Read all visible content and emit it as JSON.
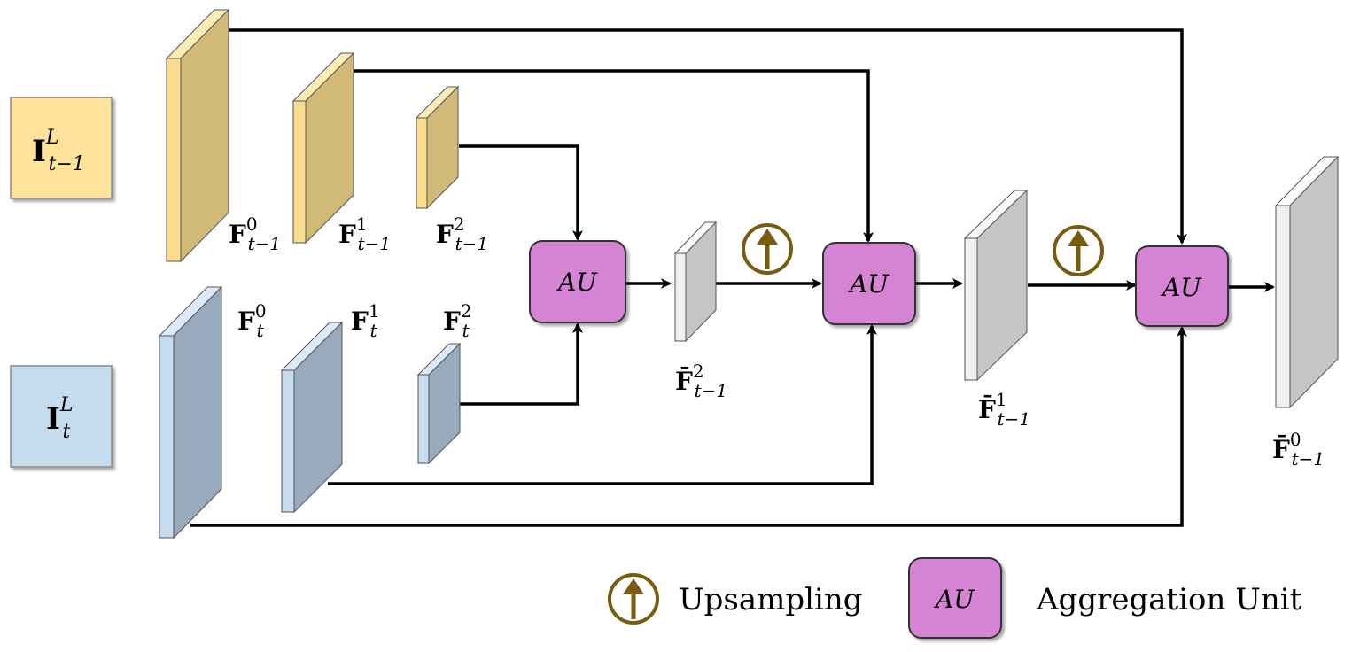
{
  "inputs": {
    "prev_frame": {
      "base": "I",
      "sup": "L",
      "sub": "t−1"
    },
    "curr_frame": {
      "base": "I",
      "sup": "L",
      "sub": "t"
    }
  },
  "features_prev": [
    {
      "base": "F",
      "sup": "0",
      "sub": "t−1"
    },
    {
      "base": "F",
      "sup": "1",
      "sub": "t−1"
    },
    {
      "base": "F",
      "sup": "2",
      "sub": "t−1"
    }
  ],
  "features_curr": [
    {
      "base": "F",
      "sup": "0",
      "sub": "t"
    },
    {
      "base": "F",
      "sup": "1",
      "sub": "t"
    },
    {
      "base": "F",
      "sup": "2",
      "sub": "t"
    }
  ],
  "aggregated": [
    {
      "base": "F̄",
      "sup": "2",
      "sub": "t−1"
    },
    {
      "base": "F̄",
      "sup": "1",
      "sub": "t−1"
    },
    {
      "base": "F̄",
      "sup": "0",
      "sub": "t−1"
    }
  ],
  "au_label": "AU",
  "legend": {
    "upsampling": "Upsampling",
    "au_symbol": "AU",
    "aggregation_unit": "Aggregation Unit"
  },
  "colors": {
    "yellow_face": "#f9dc8e",
    "yellow_side": "#d1b978",
    "blue_face": "#c5dcee",
    "blue_side": "#97abbd",
    "gray_face": "#f0f0f0",
    "gray_side": "#c5c5c5",
    "au_fill": "#d583d3",
    "upsample": "#7a5c10"
  }
}
